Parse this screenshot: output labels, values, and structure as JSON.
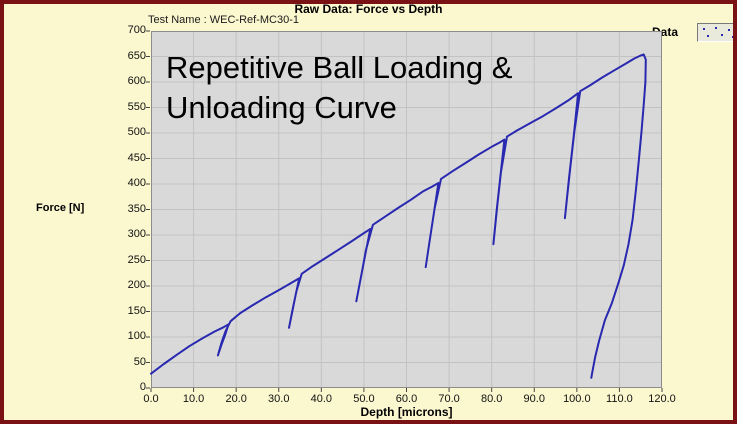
{
  "window": {
    "title": "Raw Data: Force vs Depth",
    "test_name": "Test Name : WEC-Ref-MC30-1",
    "legend_label": "Data"
  },
  "annotation": {
    "line1": "Repetitive Ball Loading &",
    "line2": "Unloading Curve"
  },
  "colors": {
    "window_bg": "#FBF8CF",
    "frame_border": "#7A1215",
    "plot_bg": "#D9D9D9",
    "grid": "#C2C2C2",
    "plot_border": "#8C8C8C",
    "tick": "#444444",
    "curve": "#2828B0",
    "legend_box_bg": "#E9E9DC",
    "text": "#000000"
  },
  "legend_marker_dots": [
    [
      5,
      4
    ],
    [
      17,
      3
    ],
    [
      30,
      5
    ],
    [
      9,
      11
    ],
    [
      23,
      10
    ],
    [
      34,
      12
    ]
  ],
  "chart_data": {
    "type": "line",
    "title": "Raw Data: Force vs Depth",
    "xlabel": "Depth [microns]",
    "ylabel": "Force [N]",
    "xlim": [
      0,
      120
    ],
    "ylim": [
      0,
      700
    ],
    "x_ticks": [
      "0.0",
      "10.0",
      "20.0",
      "30.0",
      "40.0",
      "50.0",
      "60.0",
      "70.0",
      "80.0",
      "90.0",
      "100.0",
      "110.0",
      "120.0"
    ],
    "y_ticks": [
      0,
      50,
      100,
      150,
      200,
      250,
      300,
      350,
      400,
      450,
      500,
      550,
      600,
      650,
      700
    ],
    "grid": true,
    "legend": {
      "label": "Data",
      "position": "top-right-outside"
    },
    "load_unload_cycles": [
      {
        "cycle": 1,
        "peak": [
          18.2,
          125
        ],
        "unload_to": [
          15.7,
          64
        ]
      },
      {
        "cycle": 2,
        "peak": [
          34.8,
          215
        ],
        "unload_to": [
          32.4,
          118
        ]
      },
      {
        "cycle": 3,
        "peak": [
          51.5,
          312
        ],
        "unload_to": [
          48.2,
          170
        ]
      },
      {
        "cycle": 4,
        "peak": [
          67.5,
          402
        ],
        "unload_to": [
          64.5,
          237
        ]
      },
      {
        "cycle": 5,
        "peak": [
          83.0,
          487
        ],
        "unload_to": [
          80.4,
          282
        ]
      },
      {
        "cycle": 6,
        "peak": [
          100.3,
          578
        ],
        "unload_to": [
          97.2,
          333
        ]
      },
      {
        "cycle": 7,
        "peak": [
          115.7,
          654
        ],
        "unload_to": [
          103.4,
          20
        ],
        "final_unload": true
      }
    ],
    "series": [
      {
        "name": "Data",
        "color": "#2828B0",
        "points": [
          [
            0,
            28
          ],
          [
            3,
            47
          ],
          [
            6,
            65
          ],
          [
            9,
            82
          ],
          [
            12,
            97
          ],
          [
            15,
            111
          ],
          [
            17,
            119
          ],
          [
            18.2,
            125
          ],
          [
            17.4,
            104
          ],
          [
            16.5,
            84
          ],
          [
            15.7,
            64
          ],
          [
            16.6,
            90
          ],
          [
            17.6,
            113
          ],
          [
            18.7,
            131
          ],
          [
            21,
            147
          ],
          [
            24,
            163
          ],
          [
            27,
            178
          ],
          [
            30,
            192
          ],
          [
            32.5,
            204
          ],
          [
            34.8,
            215
          ],
          [
            34,
            184
          ],
          [
            33.2,
            151
          ],
          [
            32.4,
            118
          ],
          [
            33.3,
            156
          ],
          [
            34.2,
            191
          ],
          [
            35.4,
            224
          ],
          [
            38,
            239
          ],
          [
            41,
            255
          ],
          [
            44,
            271
          ],
          [
            47,
            287
          ],
          [
            49.5,
            301
          ],
          [
            51.5,
            312
          ],
          [
            50.4,
            265
          ],
          [
            49.3,
            217
          ],
          [
            48.2,
            170
          ],
          [
            49.4,
            222
          ],
          [
            50.5,
            271
          ],
          [
            52.1,
            320
          ],
          [
            55,
            336
          ],
          [
            58,
            353
          ],
          [
            61,
            369
          ],
          [
            64,
            386
          ],
          [
            66,
            395
          ],
          [
            67.5,
            402
          ],
          [
            66.5,
            347
          ],
          [
            65.5,
            292
          ],
          [
            64.5,
            237
          ],
          [
            65.6,
            297
          ],
          [
            66.6,
            352
          ],
          [
            68.1,
            410
          ],
          [
            71,
            426
          ],
          [
            74,
            442
          ],
          [
            77,
            458
          ],
          [
            80,
            473
          ],
          [
            82,
            482
          ],
          [
            83,
            487
          ],
          [
            82.1,
            419
          ],
          [
            81.2,
            351
          ],
          [
            80.4,
            282
          ],
          [
            81.3,
            356
          ],
          [
            82.2,
            424
          ],
          [
            83.6,
            493
          ],
          [
            86,
            505
          ],
          [
            89,
            519
          ],
          [
            92,
            533
          ],
          [
            95,
            548
          ],
          [
            98,
            564
          ],
          [
            100.3,
            578
          ],
          [
            99.3,
            497
          ],
          [
            98.2,
            415
          ],
          [
            97.2,
            333
          ],
          [
            98.3,
            420
          ],
          [
            99.4,
            502
          ],
          [
            100.8,
            582
          ],
          [
            103,
            593
          ],
          [
            106,
            609
          ],
          [
            109,
            624
          ],
          [
            111.5,
            636
          ],
          [
            113.5,
            646
          ],
          [
            115,
            652
          ],
          [
            115.7,
            654
          ],
          [
            116.2,
            644
          ],
          [
            116.1,
            600
          ],
          [
            115.7,
            555
          ],
          [
            115.2,
            505
          ],
          [
            114.6,
            450
          ],
          [
            113.9,
            390
          ],
          [
            113.1,
            330
          ],
          [
            112.1,
            281
          ],
          [
            111,
            240
          ],
          [
            109.8,
            207
          ],
          [
            108.2,
            166
          ],
          [
            106.6,
            133
          ],
          [
            105.2,
            92
          ],
          [
            104.3,
            60
          ],
          [
            103.6,
            30
          ],
          [
            103.4,
            20
          ]
        ]
      }
    ]
  }
}
